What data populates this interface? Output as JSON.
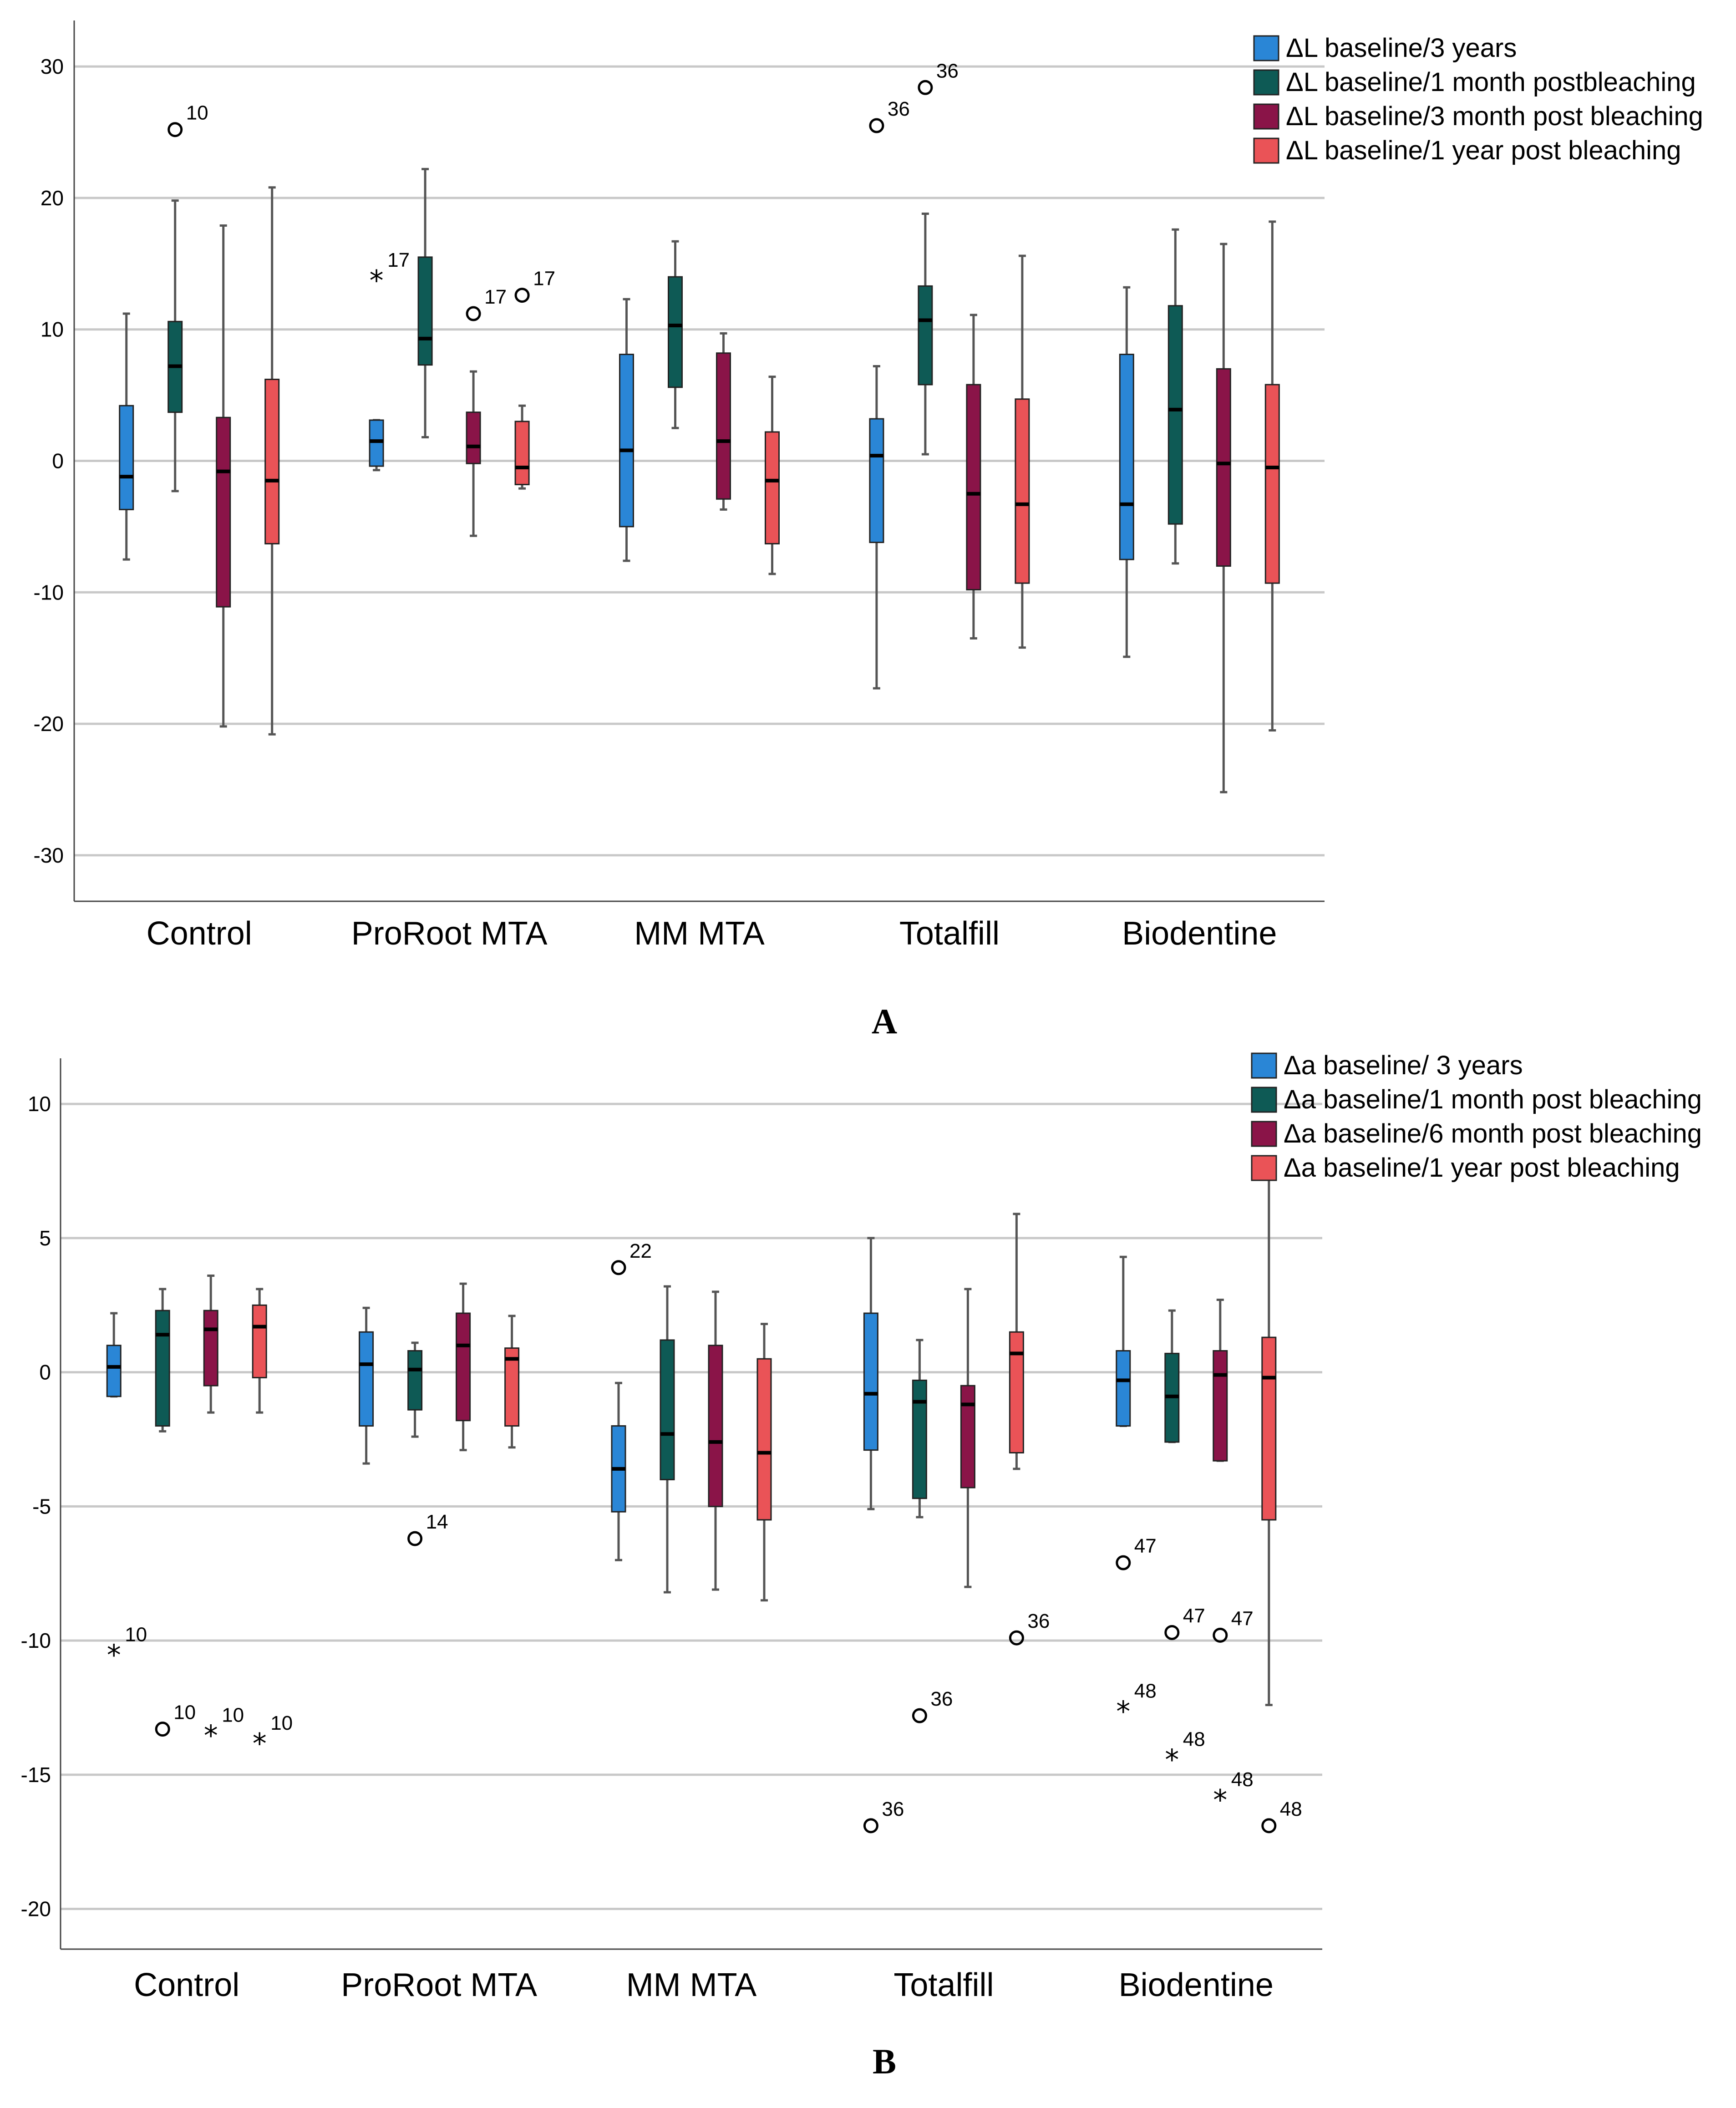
{
  "colors": {
    "blue": "#2a86d6",
    "teal": "#0e5a55",
    "maroon": "#8a1448",
    "red": "#ea5357",
    "grid": "#c8c8c8"
  },
  "chart_data": [
    {
      "id": "A",
      "type": "box",
      "panel_label": "A",
      "ylim": [
        -33.5,
        33.5
      ],
      "yticks": [
        30,
        20,
        10,
        0,
        -10,
        -20,
        -30
      ],
      "yticks_labels": [
        "30",
        "20",
        "10",
        "0",
        "-10",
        "-20",
        "-30"
      ],
      "categories": [
        "Control",
        "ProRoot MTA",
        "MM MTA",
        "Totalfill",
        "Biodentine"
      ],
      "legend": [
        "ΔL baseline/3 years",
        "ΔL baseline/1 month postbleaching",
        "ΔL baseline/3 month post bleaching",
        "ΔL baseline/1 year post bleaching"
      ],
      "series_colors": [
        "#2a86d6",
        "#0e5a55",
        "#8a1448",
        "#ea5357"
      ],
      "boxes": [
        [
          {
            "min": -7.5,
            "q1": -3.7,
            "median": -1.2,
            "q3": 4.2,
            "max": 11.2
          },
          {
            "min": -2.3,
            "q1": 3.7,
            "median": 7.2,
            "q3": 10.6,
            "max": 19.8
          },
          {
            "min": -20.2,
            "q1": -11.1,
            "median": -0.8,
            "q3": 3.3,
            "max": 17.9
          },
          {
            "min": -20.8,
            "q1": -6.3,
            "median": -1.5,
            "q3": 6.2,
            "max": 20.8
          }
        ],
        [
          {
            "min": -0.7,
            "q1": -0.4,
            "median": 1.5,
            "q3": 3.1,
            "max": 3.1
          },
          {
            "min": 1.8,
            "q1": 7.3,
            "median": 9.3,
            "q3": 15.5,
            "max": 22.2
          },
          {
            "min": -5.7,
            "q1": -0.2,
            "median": 1.1,
            "q3": 3.7,
            "max": 6.8
          },
          {
            "min": -2.1,
            "q1": -1.8,
            "median": -0.5,
            "q3": 3.0,
            "max": 4.2
          }
        ],
        [
          {
            "min": -7.6,
            "q1": -5.0,
            "median": 0.8,
            "q3": 8.1,
            "max": 12.3
          },
          {
            "min": 2.5,
            "q1": 5.6,
            "median": 10.3,
            "q3": 14.0,
            "max": 16.7
          },
          {
            "min": -3.7,
            "q1": -2.9,
            "median": 1.5,
            "q3": 8.2,
            "max": 9.7
          },
          {
            "min": -8.6,
            "q1": -6.3,
            "median": -1.5,
            "q3": 2.2,
            "max": 6.4
          }
        ],
        [
          {
            "min": -17.3,
            "q1": -6.2,
            "median": 0.4,
            "q3": 3.2,
            "max": 7.2
          },
          {
            "min": 0.5,
            "q1": 5.8,
            "median": 10.7,
            "q3": 13.3,
            "max": 18.8
          },
          {
            "min": -13.5,
            "q1": -9.8,
            "median": -2.5,
            "q3": 5.8,
            "max": 11.1
          },
          {
            "min": -14.2,
            "q1": -9.3,
            "median": -3.3,
            "q3": 4.7,
            "max": 15.6
          }
        ],
        [
          {
            "min": -14.9,
            "q1": -7.5,
            "median": -3.3,
            "q3": 8.1,
            "max": 13.2
          },
          {
            "min": -7.8,
            "q1": -4.8,
            "median": 3.9,
            "q3": 11.8,
            "max": 17.6
          },
          {
            "min": -25.2,
            "q1": -8.0,
            "median": -0.2,
            "q3": 7.0,
            "max": 16.5
          },
          {
            "min": -20.5,
            "q1": -9.3,
            "median": -0.5,
            "q3": 5.8,
            "max": 18.2
          }
        ]
      ],
      "outliers": [
        {
          "cat": 0,
          "series": 1,
          "value": 25.2,
          "label": "10",
          "shape": "circle"
        },
        {
          "cat": 1,
          "series": 0,
          "value": 14.0,
          "label": "17",
          "shape": "star"
        },
        {
          "cat": 1,
          "series": 2,
          "value": 11.2,
          "label": "17",
          "shape": "circle"
        },
        {
          "cat": 1,
          "series": 3,
          "value": 12.6,
          "label": "17",
          "shape": "circle"
        },
        {
          "cat": 3,
          "series": 0,
          "value": 25.5,
          "label": "36",
          "shape": "circle"
        },
        {
          "cat": 3,
          "series": 1,
          "value": 28.4,
          "label": "36",
          "shape": "circle"
        }
      ]
    },
    {
      "id": "B",
      "type": "box",
      "panel_label": "B",
      "ylim": [
        -21.5,
        11.7
      ],
      "yticks": [
        10,
        5,
        0,
        -5,
        -10,
        -15,
        -20
      ],
      "yticks_labels": [
        "10",
        "5",
        "0",
        "-5",
        "-10",
        "-15",
        "-20"
      ],
      "categories": [
        "Control",
        "ProRoot MTA",
        "MM MTA",
        "Totalfill",
        "Biodentine"
      ],
      "legend": [
        "Δa baseline/ 3 years",
        "Δa baseline/1 month post bleaching",
        "Δa baseline/6 month post bleaching",
        "Δa baseline/1 year post bleaching"
      ],
      "series_colors": [
        "#2a86d6",
        "#0e5a55",
        "#8a1448",
        "#ea5357"
      ],
      "boxes": [
        [
          {
            "min": -0.9,
            "q1": -0.9,
            "median": 0.2,
            "q3": 1.0,
            "max": 2.2
          },
          {
            "min": -2.2,
            "q1": -2.0,
            "median": 1.4,
            "q3": 2.3,
            "max": 3.1
          },
          {
            "min": -1.5,
            "q1": -0.5,
            "median": 1.6,
            "q3": 2.3,
            "max": 3.6
          },
          {
            "min": -1.5,
            "q1": -0.2,
            "median": 1.7,
            "q3": 2.5,
            "max": 3.1
          }
        ],
        [
          {
            "min": -3.4,
            "q1": -2.0,
            "median": 0.3,
            "q3": 1.5,
            "max": 2.4
          },
          {
            "min": -2.4,
            "q1": -1.4,
            "median": 0.1,
            "q3": 0.8,
            "max": 1.1
          },
          {
            "min": -2.9,
            "q1": -1.8,
            "median": 1.0,
            "q3": 2.2,
            "max": 3.3
          },
          {
            "min": -2.8,
            "q1": -2.0,
            "median": 0.5,
            "q3": 0.9,
            "max": 2.1
          }
        ],
        [
          {
            "min": -7.0,
            "q1": -5.2,
            "median": -3.6,
            "q3": -2.0,
            "max": -0.4
          },
          {
            "min": -8.2,
            "q1": -4.0,
            "median": -2.3,
            "q3": 1.2,
            "max": 3.2
          },
          {
            "min": -8.1,
            "q1": -5.0,
            "median": -2.6,
            "q3": 1.0,
            "max": 3.0
          },
          {
            "min": -8.5,
            "q1": -5.5,
            "median": -3.0,
            "q3": 0.5,
            "max": 1.8
          }
        ],
        [
          {
            "min": -5.1,
            "q1": -2.9,
            "median": -0.8,
            "q3": 2.2,
            "max": 5.0
          },
          {
            "min": -5.4,
            "q1": -4.7,
            "median": -1.1,
            "q3": -0.3,
            "max": 1.2
          },
          {
            "min": -8.0,
            "q1": -4.3,
            "median": -1.2,
            "q3": -0.5,
            "max": 3.1
          },
          {
            "min": -3.6,
            "q1": -3.0,
            "median": 0.7,
            "q3": 1.5,
            "max": 5.9
          }
        ],
        [
          {
            "min": -2.0,
            "q1": -2.0,
            "median": -0.3,
            "q3": 0.8,
            "max": 4.3
          },
          {
            "min": -2.6,
            "q1": -2.6,
            "median": -0.9,
            "q3": 0.7,
            "max": 2.3
          },
          {
            "min": -3.3,
            "q1": -3.3,
            "median": -0.1,
            "q3": 0.8,
            "max": 2.7
          },
          {
            "min": -12.4,
            "q1": -5.5,
            "median": -0.2,
            "q3": 1.3,
            "max": 7.2
          }
        ]
      ],
      "outliers": [
        {
          "cat": 0,
          "series": 0,
          "value": -10.4,
          "label": "10",
          "shape": "star"
        },
        {
          "cat": 0,
          "series": 1,
          "value": -13.3,
          "label": "10",
          "shape": "circle"
        },
        {
          "cat": 0,
          "series": 2,
          "value": -13.4,
          "label": "10",
          "shape": "star"
        },
        {
          "cat": 0,
          "series": 3,
          "value": -13.7,
          "label": "10",
          "shape": "star"
        },
        {
          "cat": 1,
          "series": 1,
          "value": -6.2,
          "label": "14",
          "shape": "circle"
        },
        {
          "cat": 2,
          "series": 0,
          "value": 3.9,
          "label": "22",
          "shape": "circle"
        },
        {
          "cat": 3,
          "series": 0,
          "value": -16.9,
          "label": "36",
          "shape": "circle"
        },
        {
          "cat": 3,
          "series": 1,
          "value": -12.8,
          "label": "36",
          "shape": "circle"
        },
        {
          "cat": 3,
          "series": 3,
          "value": -9.9,
          "label": "36",
          "shape": "circle"
        },
        {
          "cat": 4,
          "series": 0,
          "value": -7.1,
          "label": "47",
          "shape": "circle"
        },
        {
          "cat": 4,
          "series": 0,
          "value": -12.5,
          "label": "48",
          "shape": "star"
        },
        {
          "cat": 4,
          "series": 1,
          "value": -9.7,
          "label": "47",
          "shape": "circle"
        },
        {
          "cat": 4,
          "series": 1,
          "value": -14.3,
          "label": "48",
          "shape": "star"
        },
        {
          "cat": 4,
          "series": 2,
          "value": -9.8,
          "label": "47",
          "shape": "circle"
        },
        {
          "cat": 4,
          "series": 2,
          "value": -15.8,
          "label": "48",
          "shape": "star"
        },
        {
          "cat": 4,
          "series": 3,
          "value": -16.9,
          "label": "48",
          "shape": "circle"
        }
      ]
    }
  ]
}
